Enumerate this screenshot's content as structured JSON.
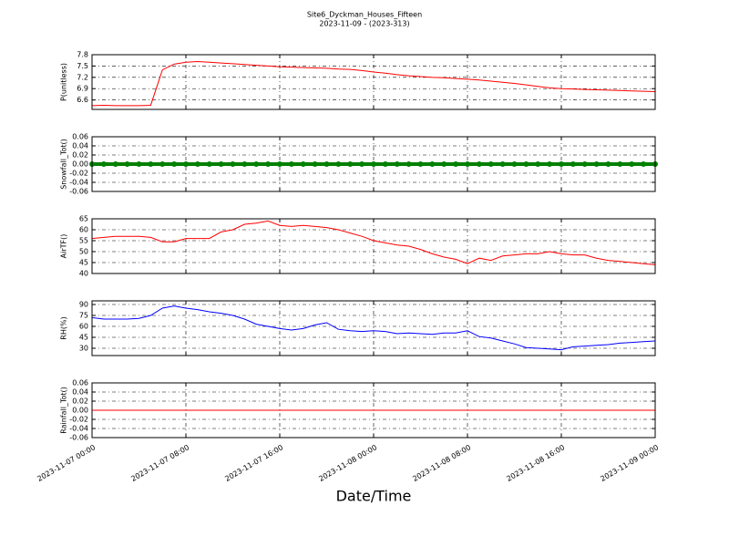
{
  "chart_data": [
    {
      "type": "line",
      "title": "Site6_Dyckman_Houses_Fifteen",
      "subtitle": "2023-11-09 - (2023-313)",
      "ylabel": "P(unitless)",
      "color": "#ff0000",
      "grid": true,
      "ylim": [
        6.35,
        7.8
      ],
      "yticks": [
        6.6,
        6.9,
        7.2,
        7.5,
        7.8
      ],
      "xlim": [
        "2023-11-07 00:00",
        "2023-11-09 00:00"
      ],
      "x": [
        "2023-11-07 00:00",
        "2023-11-07 01:00",
        "2023-11-07 02:00",
        "2023-11-07 03:00",
        "2023-11-07 04:00",
        "2023-11-07 05:00",
        "2023-11-07 06:00",
        "2023-11-07 07:00",
        "2023-11-07 08:00",
        "2023-11-07 09:00",
        "2023-11-07 10:00",
        "2023-11-07 11:00",
        "2023-11-07 12:00",
        "2023-11-07 13:00",
        "2023-11-07 14:00",
        "2023-11-07 15:00",
        "2023-11-07 16:00",
        "2023-11-07 17:00",
        "2023-11-07 18:00",
        "2023-11-07 19:00",
        "2023-11-07 20:00",
        "2023-11-07 21:00",
        "2023-11-07 22:00",
        "2023-11-07 23:00",
        "2023-11-08 00:00",
        "2023-11-08 01:00",
        "2023-11-08 02:00",
        "2023-11-08 03:00",
        "2023-11-08 04:00",
        "2023-11-08 05:00",
        "2023-11-08 06:00",
        "2023-11-08 07:00",
        "2023-11-08 08:00",
        "2023-11-08 09:00",
        "2023-11-08 10:00",
        "2023-11-08 11:00",
        "2023-11-08 12:00",
        "2023-11-08 13:00",
        "2023-11-08 14:00",
        "2023-11-08 15:00",
        "2023-11-08 16:00",
        "2023-11-08 17:00",
        "2023-11-08 18:00",
        "2023-11-08 19:00",
        "2023-11-08 20:00",
        "2023-11-08 21:00",
        "2023-11-08 22:00",
        "2023-11-08 23:00",
        "2023-11-09 00:00"
      ],
      "values": [
        6.45,
        6.46,
        6.45,
        6.45,
        6.45,
        6.46,
        7.4,
        7.55,
        7.6,
        7.62,
        7.6,
        7.58,
        7.56,
        7.54,
        7.52,
        7.5,
        7.48,
        7.47,
        7.46,
        7.45,
        7.44,
        7.42,
        7.41,
        7.38,
        7.34,
        7.31,
        7.27,
        7.24,
        7.22,
        7.2,
        7.19,
        7.17,
        7.15,
        7.13,
        7.1,
        7.07,
        7.04,
        7.0,
        6.96,
        6.92,
        6.9,
        6.89,
        6.88,
        6.87,
        6.86,
        6.85,
        6.84,
        6.83,
        6.82
      ]
    },
    {
      "type": "line",
      "marker": true,
      "ylabel": "Snowfall_Tot()",
      "color": "#008000",
      "grid": true,
      "ylim": [
        -0.06,
        0.06
      ],
      "yticks": [
        -0.06,
        -0.04,
        -0.02,
        {
          "value": 0,
          "label": "0.00"
        },
        0.02,
        0.04,
        0.06
      ],
      "xlim": [
        "2023-11-07 00:00",
        "2023-11-09 00:00"
      ],
      "x": [
        "2023-11-07 00:00",
        "2023-11-07 01:00",
        "2023-11-07 02:00",
        "2023-11-07 03:00",
        "2023-11-07 04:00",
        "2023-11-07 05:00",
        "2023-11-07 06:00",
        "2023-11-07 07:00",
        "2023-11-07 08:00",
        "2023-11-07 09:00",
        "2023-11-07 10:00",
        "2023-11-07 11:00",
        "2023-11-07 12:00",
        "2023-11-07 13:00",
        "2023-11-07 14:00",
        "2023-11-07 15:00",
        "2023-11-07 16:00",
        "2023-11-07 17:00",
        "2023-11-07 18:00",
        "2023-11-07 19:00",
        "2023-11-07 20:00",
        "2023-11-07 21:00",
        "2023-11-07 22:00",
        "2023-11-07 23:00",
        "2023-11-08 00:00",
        "2023-11-08 01:00",
        "2023-11-08 02:00",
        "2023-11-08 03:00",
        "2023-11-08 04:00",
        "2023-11-08 05:00",
        "2023-11-08 06:00",
        "2023-11-08 07:00",
        "2023-11-08 08:00",
        "2023-11-08 09:00",
        "2023-11-08 10:00",
        "2023-11-08 11:00",
        "2023-11-08 12:00",
        "2023-11-08 13:00",
        "2023-11-08 14:00",
        "2023-11-08 15:00",
        "2023-11-08 16:00",
        "2023-11-08 17:00",
        "2023-11-08 18:00",
        "2023-11-08 19:00",
        "2023-11-08 20:00",
        "2023-11-08 21:00",
        "2023-11-08 22:00",
        "2023-11-08 23:00",
        "2023-11-09 00:00"
      ],
      "values": [
        0,
        0,
        0,
        0,
        0,
        0,
        0,
        0,
        0,
        0,
        0,
        0,
        0,
        0,
        0,
        0,
        0,
        0,
        0,
        0,
        0,
        0,
        0,
        0,
        0,
        0,
        0,
        0,
        0,
        0,
        0,
        0,
        0,
        0,
        0,
        0,
        0,
        0,
        0,
        0,
        0,
        0,
        0,
        0,
        0,
        0,
        0,
        0,
        0
      ]
    },
    {
      "type": "line",
      "ylabel": "AirTF()",
      "color": "#ff0000",
      "grid": true,
      "ylim": [
        40,
        65
      ],
      "yticks": [
        40,
        45,
        50,
        55,
        60,
        65
      ],
      "xlim": [
        "2023-11-07 00:00",
        "2023-11-09 00:00"
      ],
      "x": [
        "2023-11-07 00:00",
        "2023-11-07 01:00",
        "2023-11-07 02:00",
        "2023-11-07 03:00",
        "2023-11-07 04:00",
        "2023-11-07 05:00",
        "2023-11-07 06:00",
        "2023-11-07 07:00",
        "2023-11-07 08:00",
        "2023-11-07 09:00",
        "2023-11-07 10:00",
        "2023-11-07 11:00",
        "2023-11-07 12:00",
        "2023-11-07 13:00",
        "2023-11-07 14:00",
        "2023-11-07 15:00",
        "2023-11-07 16:00",
        "2023-11-07 17:00",
        "2023-11-07 18:00",
        "2023-11-07 19:00",
        "2023-11-07 20:00",
        "2023-11-07 21:00",
        "2023-11-07 22:00",
        "2023-11-07 23:00",
        "2023-11-08 00:00",
        "2023-11-08 01:00",
        "2023-11-08 02:00",
        "2023-11-08 03:00",
        "2023-11-08 04:00",
        "2023-11-08 05:00",
        "2023-11-08 06:00",
        "2023-11-08 07:00",
        "2023-11-08 08:00",
        "2023-11-08 09:00",
        "2023-11-08 10:00",
        "2023-11-08 11:00",
        "2023-11-08 12:00",
        "2023-11-08 13:00",
        "2023-11-08 14:00",
        "2023-11-08 15:00",
        "2023-11-08 16:00",
        "2023-11-08 17:00",
        "2023-11-08 18:00",
        "2023-11-08 19:00",
        "2023-11-08 20:00",
        "2023-11-08 21:00",
        "2023-11-08 22:00",
        "2023-11-08 23:00",
        "2023-11-09 00:00"
      ],
      "values": [
        56,
        56.5,
        57,
        57,
        57,
        56.5,
        54.5,
        54.5,
        56,
        56,
        56,
        59,
        60,
        62.5,
        63,
        64,
        62,
        61.5,
        62,
        61.5,
        61,
        60,
        58.5,
        57,
        55,
        54,
        53,
        52.5,
        51,
        49,
        47.5,
        46.5,
        44.5,
        47,
        46,
        48,
        48.5,
        49,
        49,
        50,
        49,
        48.5,
        48.5,
        47,
        46,
        45.5,
        45,
        44.5,
        44
      ]
    },
    {
      "type": "line",
      "ylabel": "RH(%)",
      "color": "#0000ff",
      "grid": true,
      "ylim": [
        20,
        95
      ],
      "yticks": [
        30,
        45,
        60,
        75,
        90
      ],
      "xlim": [
        "2023-11-07 00:00",
        "2023-11-09 00:00"
      ],
      "x": [
        "2023-11-07 00:00",
        "2023-11-07 01:00",
        "2023-11-07 02:00",
        "2023-11-07 03:00",
        "2023-11-07 04:00",
        "2023-11-07 05:00",
        "2023-11-07 06:00",
        "2023-11-07 07:00",
        "2023-11-07 08:00",
        "2023-11-07 09:00",
        "2023-11-07 10:00",
        "2023-11-07 11:00",
        "2023-11-07 12:00",
        "2023-11-07 13:00",
        "2023-11-07 14:00",
        "2023-11-07 15:00",
        "2023-11-07 16:00",
        "2023-11-07 17:00",
        "2023-11-07 18:00",
        "2023-11-07 19:00",
        "2023-11-07 20:00",
        "2023-11-07 21:00",
        "2023-11-07 22:00",
        "2023-11-07 23:00",
        "2023-11-08 00:00",
        "2023-11-08 01:00",
        "2023-11-08 02:00",
        "2023-11-08 03:00",
        "2023-11-08 04:00",
        "2023-11-08 05:00",
        "2023-11-08 06:00",
        "2023-11-08 07:00",
        "2023-11-08 08:00",
        "2023-11-08 09:00",
        "2023-11-08 10:00",
        "2023-11-08 11:00",
        "2023-11-08 12:00",
        "2023-11-08 13:00",
        "2023-11-08 14:00",
        "2023-11-08 15:00",
        "2023-11-08 16:00",
        "2023-11-08 17:00",
        "2023-11-08 18:00",
        "2023-11-08 19:00",
        "2023-11-08 20:00",
        "2023-11-08 21:00",
        "2023-11-08 22:00",
        "2023-11-08 23:00",
        "2023-11-09 00:00"
      ],
      "values": [
        72,
        70,
        70,
        70,
        71,
        75,
        85,
        88,
        85,
        83,
        80,
        78,
        75,
        70,
        63,
        60,
        57,
        55,
        57,
        62,
        65,
        56,
        54,
        53,
        54,
        53,
        50,
        51,
        50,
        49,
        51,
        51,
        54,
        46,
        44,
        40,
        36,
        31,
        30,
        29,
        28,
        32,
        33,
        34,
        35,
        37,
        38,
        39,
        40
      ]
    },
    {
      "type": "line",
      "ylabel": "Rainfall_Tot()",
      "xlabel": "Date/Time",
      "color": "#ff0000",
      "grid": true,
      "ylim": [
        -0.06,
        0.06
      ],
      "yticks": [
        -0.06,
        -0.04,
        -0.02,
        {
          "value": 0,
          "label": "0.00"
        },
        0.02,
        0.04,
        0.06
      ],
      "xlim": [
        "2023-11-07 00:00",
        "2023-11-09 00:00"
      ],
      "xticks": [
        "2023-11-07 00:00",
        "2023-11-07 08:00",
        "2023-11-07 16:00",
        "2023-11-08 00:00",
        "2023-11-08 08:00",
        "2023-11-08 16:00",
        "2023-11-09 00:00"
      ],
      "x": [
        "2023-11-07 00:00",
        "2023-11-07 01:00",
        "2023-11-07 02:00",
        "2023-11-07 03:00",
        "2023-11-07 04:00",
        "2023-11-07 05:00",
        "2023-11-07 06:00",
        "2023-11-07 07:00",
        "2023-11-07 08:00",
        "2023-11-07 09:00",
        "2023-11-07 10:00",
        "2023-11-07 11:00",
        "2023-11-07 12:00",
        "2023-11-07 13:00",
        "2023-11-07 14:00",
        "2023-11-07 15:00",
        "2023-11-07 16:00",
        "2023-11-07 17:00",
        "2023-11-07 18:00",
        "2023-11-07 19:00",
        "2023-11-07 20:00",
        "2023-11-07 21:00",
        "2023-11-07 22:00",
        "2023-11-07 23:00",
        "2023-11-08 00:00",
        "2023-11-08 01:00",
        "2023-11-08 02:00",
        "2023-11-08 03:00",
        "2023-11-08 04:00",
        "2023-11-08 05:00",
        "2023-11-08 06:00",
        "2023-11-08 07:00",
        "2023-11-08 08:00",
        "2023-11-08 09:00",
        "2023-11-08 10:00",
        "2023-11-08 11:00",
        "2023-11-08 12:00",
        "2023-11-08 13:00",
        "2023-11-08 14:00",
        "2023-11-08 15:00",
        "2023-11-08 16:00",
        "2023-11-08 17:00",
        "2023-11-08 18:00",
        "2023-11-08 19:00",
        "2023-11-08 20:00",
        "2023-11-08 21:00",
        "2023-11-08 22:00",
        "2023-11-08 23:00",
        "2023-11-09 00:00"
      ],
      "values": [
        0,
        0,
        0,
        0,
        0,
        0,
        0,
        0,
        0,
        0,
        0,
        0,
        0,
        0,
        0,
        0,
        0,
        0,
        0,
        0,
        0,
        0,
        0,
        0,
        0,
        0,
        0,
        0,
        0,
        0,
        0,
        0,
        0,
        0,
        0,
        0,
        0,
        0,
        0,
        0,
        0,
        0,
        0,
        0,
        0,
        0,
        0,
        0,
        0
      ]
    }
  ]
}
